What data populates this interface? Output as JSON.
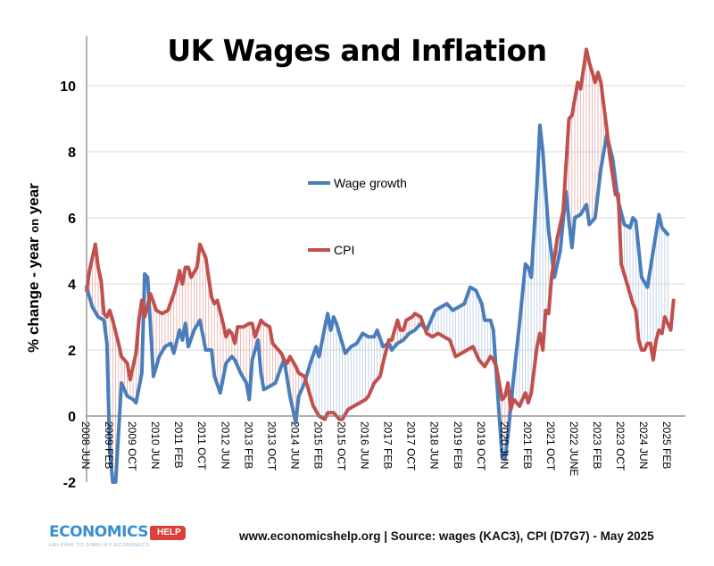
{
  "chart_data": {
    "type": "line",
    "title": "UK Wages and Inflation",
    "ylabel_parts": [
      "% change  - year ",
      "on",
      " year"
    ],
    "xlabel": "",
    "ylim": [
      -2,
      11.5
    ],
    "yticks": [
      -2,
      0,
      2,
      4,
      6,
      8,
      10
    ],
    "grid": true,
    "legend_placement": "center-left",
    "xticks": [
      "2008 JUN",
      "2009 FEB",
      "2009 OCT",
      "2010 JUN",
      "2011 FEB",
      "2011 OCT",
      "2012 JUN",
      "2013 FEB",
      "2013 OCT",
      "2014 JUN",
      "2015 FEB",
      "2015 OCT",
      "2016 JUN",
      "2017 FEB",
      "2017 OCT",
      "2018 JUN",
      "2019 FEB",
      "2019 OCT",
      "2020 JUN",
      "2021 FEB",
      "2021 OCT",
      "2022 JUNE",
      "2023 FEB",
      "2023 OCT",
      "2024 JUN",
      "2025 FEB"
    ],
    "series": [
      {
        "name": "Wage growth",
        "color": "#4a7ebb",
        "points": [
          [
            "2008-06",
            3.9
          ],
          [
            "2008-08",
            3.3
          ],
          [
            "2008-10",
            3.0
          ],
          [
            "2008-12",
            2.9
          ],
          [
            "2009-01",
            2.2
          ],
          [
            "2009-02",
            -1.0
          ],
          [
            "2009-03",
            -2.0
          ],
          [
            "2009-04",
            -2.0
          ],
          [
            "2009-05",
            -0.5
          ],
          [
            "2009-06",
            1.0
          ],
          [
            "2009-08",
            0.6
          ],
          [
            "2009-10",
            0.5
          ],
          [
            "2009-11",
            0.4
          ],
          [
            "2010-01",
            1.3
          ],
          [
            "2010-02",
            4.3
          ],
          [
            "2010-03",
            4.2
          ],
          [
            "2010-05",
            1.2
          ],
          [
            "2010-07",
            1.8
          ],
          [
            "2010-09",
            2.1
          ],
          [
            "2010-11",
            2.2
          ],
          [
            "2010-12",
            1.9
          ],
          [
            "2011-02",
            2.6
          ],
          [
            "2011-03",
            2.3
          ],
          [
            "2011-04",
            2.8
          ],
          [
            "2011-05",
            2.1
          ],
          [
            "2011-07",
            2.6
          ],
          [
            "2011-09",
            2.9
          ],
          [
            "2011-11",
            2.0
          ],
          [
            "2012-01",
            2.0
          ],
          [
            "2012-02",
            1.2
          ],
          [
            "2012-04",
            0.7
          ],
          [
            "2012-06",
            1.6
          ],
          [
            "2012-08",
            1.8
          ],
          [
            "2012-09",
            1.7
          ],
          [
            "2012-11",
            1.3
          ],
          [
            "2013-01",
            1.0
          ],
          [
            "2013-02",
            0.5
          ],
          [
            "2013-03",
            1.7
          ],
          [
            "2013-05",
            2.3
          ],
          [
            "2013-06",
            1.3
          ],
          [
            "2013-07",
            0.8
          ],
          [
            "2013-09",
            0.9
          ],
          [
            "2013-11",
            1.0
          ],
          [
            "2014-01",
            1.5
          ],
          [
            "2014-02",
            1.7
          ],
          [
            "2014-04",
            0.6
          ],
          [
            "2014-06",
            -0.2
          ],
          [
            "2014-07",
            0.6
          ],
          [
            "2014-09",
            1.0
          ],
          [
            "2014-11",
            1.6
          ],
          [
            "2015-01",
            2.1
          ],
          [
            "2015-02",
            1.8
          ],
          [
            "2015-04",
            2.7
          ],
          [
            "2015-05",
            3.1
          ],
          [
            "2015-06",
            2.6
          ],
          [
            "2015-07",
            3.0
          ],
          [
            "2015-08",
            2.8
          ],
          [
            "2015-10",
            2.2
          ],
          [
            "2015-11",
            1.9
          ],
          [
            "2016-01",
            2.1
          ],
          [
            "2016-03",
            2.2
          ],
          [
            "2016-05",
            2.5
          ],
          [
            "2016-07",
            2.4
          ],
          [
            "2016-09",
            2.4
          ],
          [
            "2016-10",
            2.6
          ],
          [
            "2016-12",
            2.1
          ],
          [
            "2017-02",
            2.2
          ],
          [
            "2017-03",
            2.0
          ],
          [
            "2017-05",
            2.2
          ],
          [
            "2017-07",
            2.3
          ],
          [
            "2017-09",
            2.5
          ],
          [
            "2017-11",
            2.6
          ],
          [
            "2018-01",
            2.8
          ],
          [
            "2018-03",
            2.6
          ],
          [
            "2018-04",
            2.8
          ],
          [
            "2018-06",
            3.2
          ],
          [
            "2018-08",
            3.3
          ],
          [
            "2018-10",
            3.4
          ],
          [
            "2018-12",
            3.2
          ],
          [
            "2019-02",
            3.3
          ],
          [
            "2019-04",
            3.4
          ],
          [
            "2019-06",
            3.9
          ],
          [
            "2019-08",
            3.8
          ],
          [
            "2019-10",
            3.4
          ],
          [
            "2019-11",
            2.9
          ],
          [
            "2020-01",
            2.9
          ],
          [
            "2020-02",
            2.6
          ],
          [
            "2020-04",
            0.0
          ],
          [
            "2020-05",
            -1.2
          ],
          [
            "2020-06",
            -1.3
          ],
          [
            "2020-07",
            -0.6
          ],
          [
            "2020-09",
            1.2
          ],
          [
            "2020-11",
            2.8
          ],
          [
            "2021-01",
            4.6
          ],
          [
            "2021-02",
            4.5
          ],
          [
            "2021-03",
            4.2
          ],
          [
            "2021-05",
            7.0
          ],
          [
            "2021-06",
            8.8
          ],
          [
            "2021-07",
            8.0
          ],
          [
            "2021-09",
            5.6
          ],
          [
            "2021-11",
            4.2
          ],
          [
            "2022-01",
            5.0
          ],
          [
            "2022-03",
            6.8
          ],
          [
            "2022-04",
            5.9
          ],
          [
            "2022-05",
            5.1
          ],
          [
            "2022-06",
            6.0
          ],
          [
            "2022-08",
            6.1
          ],
          [
            "2022-10",
            6.4
          ],
          [
            "2022-11",
            5.8
          ],
          [
            "2023-01",
            6.0
          ],
          [
            "2023-03",
            7.5
          ],
          [
            "2023-05",
            8.5
          ],
          [
            "2023-07",
            7.8
          ],
          [
            "2023-09",
            6.5
          ],
          [
            "2023-11",
            5.8
          ],
          [
            "2024-01",
            5.7
          ],
          [
            "2024-02",
            6.0
          ],
          [
            "2024-03",
            5.9
          ],
          [
            "2024-05",
            4.2
          ],
          [
            "2024-07",
            3.9
          ],
          [
            "2024-09",
            5.0
          ],
          [
            "2024-11",
            6.1
          ],
          [
            "2024-12",
            5.7
          ],
          [
            "2025-02",
            5.5
          ]
        ]
      },
      {
        "name": "CPI",
        "color": "#c0504d",
        "points": [
          [
            "2008-06",
            3.8
          ],
          [
            "2008-07",
            4.4
          ],
          [
            "2008-09",
            5.2
          ],
          [
            "2008-10",
            4.5
          ],
          [
            "2008-11",
            4.1
          ],
          [
            "2008-12",
            3.1
          ],
          [
            "2009-01",
            3.0
          ],
          [
            "2009-02",
            3.2
          ],
          [
            "2009-03",
            2.9
          ],
          [
            "2009-05",
            2.2
          ],
          [
            "2009-06",
            1.8
          ],
          [
            "2009-08",
            1.6
          ],
          [
            "2009-09",
            1.1
          ],
          [
            "2009-11",
            1.9
          ],
          [
            "2009-12",
            2.9
          ],
          [
            "2010-01",
            3.5
          ],
          [
            "2010-02",
            3.0
          ],
          [
            "2010-04",
            3.7
          ],
          [
            "2010-06",
            3.2
          ],
          [
            "2010-08",
            3.1
          ],
          [
            "2010-10",
            3.2
          ],
          [
            "2010-12",
            3.7
          ],
          [
            "2011-01",
            4.0
          ],
          [
            "2011-02",
            4.4
          ],
          [
            "2011-03",
            4.0
          ],
          [
            "2011-04",
            4.5
          ],
          [
            "2011-05",
            4.5
          ],
          [
            "2011-06",
            4.2
          ],
          [
            "2011-08",
            4.5
          ],
          [
            "2011-09",
            5.2
          ],
          [
            "2011-10",
            5.0
          ],
          [
            "2011-11",
            4.8
          ],
          [
            "2012-01",
            3.6
          ],
          [
            "2012-02",
            3.4
          ],
          [
            "2012-03",
            3.5
          ],
          [
            "2012-05",
            2.8
          ],
          [
            "2012-06",
            2.4
          ],
          [
            "2012-07",
            2.6
          ],
          [
            "2012-08",
            2.5
          ],
          [
            "2012-09",
            2.2
          ],
          [
            "2012-10",
            2.7
          ],
          [
            "2012-12",
            2.7
          ],
          [
            "2013-02",
            2.8
          ],
          [
            "2013-03",
            2.8
          ],
          [
            "2013-04",
            2.4
          ],
          [
            "2013-06",
            2.9
          ],
          [
            "2013-07",
            2.8
          ],
          [
            "2013-09",
            2.7
          ],
          [
            "2013-10",
            2.2
          ],
          [
            "2013-12",
            2.0
          ],
          [
            "2014-01",
            1.9
          ],
          [
            "2014-02",
            1.7
          ],
          [
            "2014-03",
            1.6
          ],
          [
            "2014-04",
            1.8
          ],
          [
            "2014-06",
            1.5
          ],
          [
            "2014-07",
            1.3
          ],
          [
            "2014-09",
            1.2
          ],
          [
            "2014-10",
            0.9
          ],
          [
            "2014-11",
            0.6
          ],
          [
            "2014-12",
            0.3
          ],
          [
            "2015-02",
            0.0
          ],
          [
            "2015-04",
            -0.1
          ],
          [
            "2015-05",
            0.1
          ],
          [
            "2015-07",
            0.1
          ],
          [
            "2015-09",
            -0.1
          ],
          [
            "2015-10",
            -0.1
          ],
          [
            "2015-12",
            0.2
          ],
          [
            "2016-02",
            0.3
          ],
          [
            "2016-04",
            0.4
          ],
          [
            "2016-06",
            0.5
          ],
          [
            "2016-07",
            0.6
          ],
          [
            "2016-09",
            1.0
          ],
          [
            "2016-11",
            1.2
          ],
          [
            "2016-12",
            1.6
          ],
          [
            "2017-02",
            2.3
          ],
          [
            "2017-03",
            2.3
          ],
          [
            "2017-05",
            2.9
          ],
          [
            "2017-06",
            2.6
          ],
          [
            "2017-07",
            2.6
          ],
          [
            "2017-08",
            2.9
          ],
          [
            "2017-10",
            3.0
          ],
          [
            "2017-11",
            3.1
          ],
          [
            "2018-01",
            3.0
          ],
          [
            "2018-03",
            2.5
          ],
          [
            "2018-05",
            2.4
          ],
          [
            "2018-07",
            2.5
          ],
          [
            "2018-09",
            2.4
          ],
          [
            "2018-11",
            2.3
          ],
          [
            "2019-01",
            1.8
          ],
          [
            "2019-03",
            1.9
          ],
          [
            "2019-05",
            2.0
          ],
          [
            "2019-07",
            2.1
          ],
          [
            "2019-09",
            1.7
          ],
          [
            "2019-11",
            1.5
          ],
          [
            "2020-01",
            1.8
          ],
          [
            "2020-02",
            1.7
          ],
          [
            "2020-03",
            1.5
          ],
          [
            "2020-05",
            0.5
          ],
          [
            "2020-06",
            0.6
          ],
          [
            "2020-07",
            1.0
          ],
          [
            "2020-08",
            0.2
          ],
          [
            "2020-09",
            0.5
          ],
          [
            "2020-11",
            0.3
          ],
          [
            "2021-01",
            0.7
          ],
          [
            "2021-02",
            0.4
          ],
          [
            "2021-03",
            0.7
          ],
          [
            "2021-05",
            2.1
          ],
          [
            "2021-06",
            2.5
          ],
          [
            "2021-07",
            2.0
          ],
          [
            "2021-08",
            3.2
          ],
          [
            "2021-09",
            3.1
          ],
          [
            "2021-10",
            4.2
          ],
          [
            "2021-12",
            5.4
          ],
          [
            "2022-02",
            6.2
          ],
          [
            "2022-04",
            9.0
          ],
          [
            "2022-05",
            9.1
          ],
          [
            "2022-07",
            10.1
          ],
          [
            "2022-08",
            9.9
          ],
          [
            "2022-10",
            11.1
          ],
          [
            "2022-11",
            10.7
          ],
          [
            "2023-01",
            10.1
          ],
          [
            "2023-02",
            10.4
          ],
          [
            "2023-03",
            10.1
          ],
          [
            "2023-05",
            8.7
          ],
          [
            "2023-06",
            7.9
          ],
          [
            "2023-08",
            6.7
          ],
          [
            "2023-09",
            6.7
          ],
          [
            "2023-10",
            4.6
          ],
          [
            "2023-12",
            4.0
          ],
          [
            "2024-02",
            3.4
          ],
          [
            "2024-03",
            3.2
          ],
          [
            "2024-04",
            2.3
          ],
          [
            "2024-05",
            2.0
          ],
          [
            "2024-06",
            2.0
          ],
          [
            "2024-07",
            2.2
          ],
          [
            "2024-08",
            2.2
          ],
          [
            "2024-09",
            1.7
          ],
          [
            "2024-10",
            2.3
          ],
          [
            "2024-11",
            2.6
          ],
          [
            "2024-12",
            2.5
          ],
          [
            "2025-01",
            3.0
          ],
          [
            "2025-02",
            2.8
          ],
          [
            "2025-03",
            2.6
          ],
          [
            "2025-04",
            3.5
          ]
        ]
      }
    ]
  },
  "footer": {
    "source": "www.economicshelp.org | Source: wages (KAC3), CPI (D7G7) - May 2025"
  },
  "logo": {
    "name": "ECONOMICS",
    "badge": "HELP",
    "tagline": "HELPING TO SIMPLIFY ECONOMICS"
  }
}
